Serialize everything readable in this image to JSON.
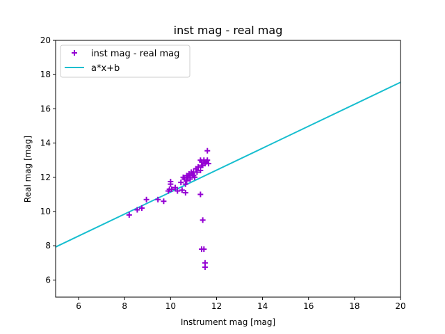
{
  "chart_data": {
    "type": "scatter",
    "title": "inst mag - real mag",
    "xlabel": "Instrument mag [mag]",
    "ylabel": "Real mag [mag]",
    "xlim": [
      5,
      20
    ],
    "ylim": [
      5,
      20
    ],
    "xticks": [
      6,
      8,
      10,
      12,
      14,
      16,
      18,
      20
    ],
    "yticks": [
      6,
      8,
      10,
      12,
      14,
      16,
      18,
      20
    ],
    "grid": false,
    "legend_position": "upper-left",
    "series": [
      {
        "name": "inst mag - real mag",
        "kind": "scatter",
        "marker": "+",
        "color": "#9400d3",
        "points": [
          [
            8.2,
            9.8
          ],
          [
            8.55,
            10.1
          ],
          [
            8.75,
            10.2
          ],
          [
            8.95,
            10.7
          ],
          [
            9.45,
            10.7
          ],
          [
            9.7,
            10.6
          ],
          [
            9.9,
            11.2
          ],
          [
            9.95,
            11.3
          ],
          [
            10.0,
            11.75
          ],
          [
            10.0,
            11.6
          ],
          [
            10.05,
            11.3
          ],
          [
            10.2,
            11.4
          ],
          [
            10.3,
            11.2
          ],
          [
            10.45,
            11.7
          ],
          [
            10.5,
            11.25
          ],
          [
            10.55,
            12.0
          ],
          [
            10.6,
            11.9
          ],
          [
            10.65,
            11.1
          ],
          [
            10.65,
            11.6
          ],
          [
            10.7,
            12.1
          ],
          [
            10.7,
            11.8
          ],
          [
            10.75,
            12.0
          ],
          [
            10.8,
            12.2
          ],
          [
            10.85,
            11.9
          ],
          [
            10.85,
            12.0
          ],
          [
            10.9,
            12.3
          ],
          [
            10.95,
            12.2
          ],
          [
            11.0,
            12.1
          ],
          [
            11.0,
            12.3
          ],
          [
            11.05,
            12.0
          ],
          [
            11.1,
            12.5
          ],
          [
            11.15,
            12.3
          ],
          [
            11.2,
            12.6
          ],
          [
            11.3,
            13.0
          ],
          [
            11.3,
            12.4
          ],
          [
            11.35,
            12.7
          ],
          [
            11.35,
            12.9
          ],
          [
            11.4,
            12.7
          ],
          [
            11.45,
            13.0
          ],
          [
            11.5,
            12.8
          ],
          [
            11.55,
            12.9
          ],
          [
            11.6,
            13.0
          ],
          [
            11.65,
            12.8
          ],
          [
            11.6,
            13.55
          ],
          [
            11.3,
            11.0
          ],
          [
            11.4,
            9.5
          ],
          [
            11.35,
            7.8
          ],
          [
            11.45,
            7.8
          ],
          [
            11.5,
            7.0
          ],
          [
            11.5,
            6.75
          ]
        ]
      },
      {
        "name": "a*x+b",
        "kind": "line",
        "color": "#17becf",
        "points": [
          [
            5,
            7.93
          ],
          [
            20,
            17.55
          ]
        ]
      }
    ]
  }
}
